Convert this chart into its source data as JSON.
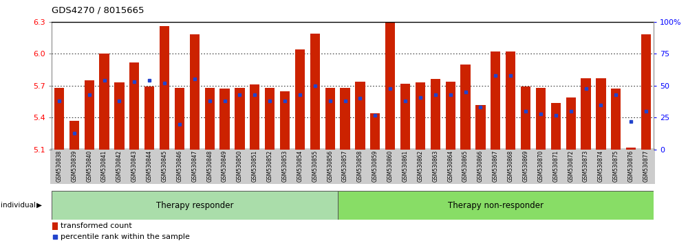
{
  "title": "GDS4270 / 8015665",
  "samples": [
    "GSM530838",
    "GSM530839",
    "GSM530840",
    "GSM530841",
    "GSM530842",
    "GSM530843",
    "GSM530844",
    "GSM530845",
    "GSM530846",
    "GSM530847",
    "GSM530848",
    "GSM530849",
    "GSM530850",
    "GSM530851",
    "GSM530852",
    "GSM530853",
    "GSM530854",
    "GSM530855",
    "GSM530856",
    "GSM530857",
    "GSM530858",
    "GSM530859",
    "GSM530860",
    "GSM530861",
    "GSM530862",
    "GSM530863",
    "GSM530864",
    "GSM530865",
    "GSM530866",
    "GSM530867",
    "GSM530868",
    "GSM530869",
    "GSM530870",
    "GSM530871",
    "GSM530872",
    "GSM530873",
    "GSM530874",
    "GSM530875",
    "GSM530876",
    "GSM530877"
  ],
  "transformed_count": [
    5.68,
    5.37,
    5.75,
    6.0,
    5.73,
    5.92,
    5.69,
    6.26,
    5.68,
    6.18,
    5.68,
    5.67,
    5.68,
    5.71,
    5.68,
    5.65,
    6.04,
    6.19,
    5.68,
    5.68,
    5.74,
    5.44,
    6.29,
    5.72,
    5.73,
    5.76,
    5.74,
    5.9,
    5.52,
    6.02,
    6.02,
    5.69,
    5.68,
    5.54,
    5.59,
    5.77,
    5.77,
    5.67,
    5.12,
    6.18
  ],
  "percentile_rank": [
    38,
    13,
    43,
    54,
    38,
    53,
    54,
    52,
    20,
    55,
    38,
    38,
    43,
    43,
    38,
    38,
    43,
    50,
    38,
    38,
    40,
    27,
    48,
    38,
    41,
    43,
    43,
    45,
    33,
    58,
    58,
    30,
    28,
    27,
    30,
    48,
    35,
    43,
    22,
    30
  ],
  "group1_count": 19,
  "ymin": 5.1,
  "ymax": 6.3,
  "yticks": [
    5.1,
    5.4,
    5.7,
    6.0,
    6.3
  ],
  "right_yticks": [
    0,
    25,
    50,
    75,
    100
  ],
  "bar_color": "#cc2200",
  "blue_color": "#2244cc",
  "group_color": "#88dd66",
  "label_bg_color": "#cccccc",
  "group_labels": [
    "Therapy responder",
    "Therapy non-responder"
  ]
}
